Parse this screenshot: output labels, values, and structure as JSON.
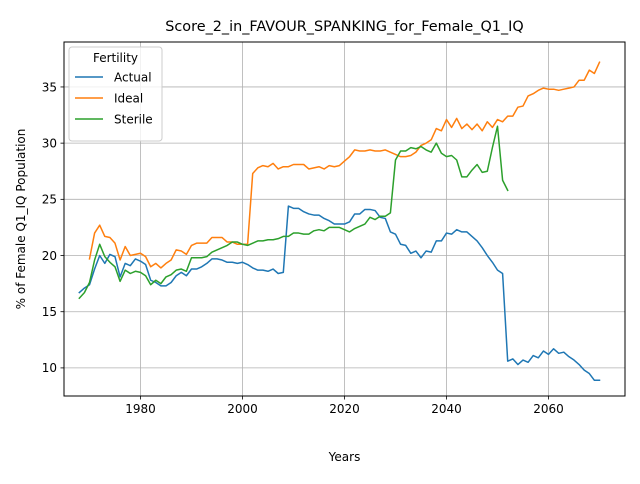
{
  "chart_data": {
    "type": "line",
    "title": "Score_2_in_FAVOUR_SPANKING_for_Female_Q1_IQ",
    "xlabel": "Years",
    "ylabel": "% of Female Q1_IQ Population",
    "xlim": [
      1965.0,
      2075.0
    ],
    "ylim": [
      7.5,
      39.0
    ],
    "xticks": [
      1980,
      2000,
      2020,
      2040,
      2060
    ],
    "yticks": [
      10,
      15,
      20,
      25,
      30,
      35
    ],
    "grid": true,
    "legend": {
      "title": "Fertility",
      "placement": "upper left"
    },
    "series": [
      {
        "name": "Actual",
        "color": "#1f77b4",
        "x": [
          1968,
          1969,
          1970,
          1971,
          1972,
          1973,
          1974,
          1975,
          1976,
          1977,
          1978,
          1979,
          1980,
          1981,
          1982,
          1983,
          1984,
          1985,
          1986,
          1987,
          1988,
          1989,
          1990,
          1991,
          1992,
          1993,
          1994,
          1995,
          1996,
          1997,
          1998,
          1999,
          2000,
          2001,
          2002,
          2003,
          2004,
          2005,
          2006,
          2007,
          2008,
          2009,
          2010,
          2011,
          2012,
          2013,
          2014,
          2015,
          2016,
          2017,
          2018,
          2019,
          2020,
          2021,
          2022,
          2023,
          2024,
          2025,
          2026,
          2027,
          2028,
          2029,
          2030,
          2031,
          2032,
          2033,
          2034,
          2035,
          2036,
          2037,
          2038,
          2039,
          2040,
          2041,
          2042,
          2043,
          2044,
          2045,
          2046,
          2047,
          2048,
          2049,
          2050,
          2051,
          2052,
          2053,
          2054,
          2055,
          2056,
          2057,
          2058,
          2059,
          2060,
          2061,
          2062,
          2063,
          2064,
          2065,
          2066,
          2067,
          2068,
          2069,
          2070
        ],
        "y": [
          16.7,
          17.1,
          17.4,
          18.8,
          20.0,
          19.3,
          20.1,
          19.9,
          18.1,
          19.3,
          19.1,
          19.7,
          19.5,
          19.2,
          17.8,
          17.6,
          17.3,
          17.3,
          17.6,
          18.2,
          18.5,
          18.2,
          18.8,
          18.8,
          19.0,
          19.3,
          19.7,
          19.7,
          19.6,
          19.4,
          19.4,
          19.3,
          19.4,
          19.2,
          18.9,
          18.7,
          18.7,
          18.6,
          18.8,
          18.4,
          18.5,
          24.4,
          24.2,
          24.2,
          23.9,
          23.7,
          23.6,
          23.6,
          23.3,
          23.1,
          22.8,
          22.8,
          22.8,
          23.0,
          23.7,
          23.7,
          24.1,
          24.1,
          24.0,
          23.4,
          23.3,
          22.1,
          21.9,
          21.0,
          20.9,
          20.2,
          20.4,
          19.8,
          20.4,
          20.3,
          21.3,
          21.3,
          22.0,
          21.9,
          22.3,
          22.1,
          22.1,
          21.7,
          21.3,
          20.7,
          20.0,
          19.4,
          18.7,
          18.4,
          10.6,
          10.8,
          10.3,
          10.7,
          10.5,
          11.1,
          10.9,
          11.5,
          11.2,
          11.7,
          11.3,
          11.4,
          11.0,
          10.7,
          10.3,
          9.8,
          9.5,
          8.9,
          8.9
        ]
      },
      {
        "name": "Ideal",
        "color": "#ff7f0e",
        "x": [
          1970,
          1971,
          1972,
          1973,
          1974,
          1975,
          1976,
          1977,
          1978,
          1979,
          1980,
          1981,
          1982,
          1983,
          1984,
          1985,
          1986,
          1987,
          1988,
          1989,
          1990,
          1991,
          1992,
          1993,
          1994,
          1995,
          1996,
          1997,
          1998,
          1999,
          2000,
          2001,
          2002,
          2003,
          2004,
          2005,
          2006,
          2007,
          2008,
          2009,
          2010,
          2011,
          2012,
          2013,
          2014,
          2015,
          2016,
          2017,
          2018,
          2019,
          2020,
          2021,
          2022,
          2023,
          2024,
          2025,
          2026,
          2027,
          2028,
          2029,
          2030,
          2031,
          2032,
          2033,
          2034,
          2035,
          2036,
          2037,
          2038,
          2039,
          2040,
          2041,
          2042,
          2043,
          2044,
          2045,
          2046,
          2047,
          2048,
          2049,
          2050,
          2051,
          2052,
          2053,
          2054,
          2055,
          2056,
          2057,
          2058,
          2059,
          2060,
          2061,
          2062,
          2063,
          2064,
          2065,
          2066,
          2067,
          2068,
          2069,
          2070
        ],
        "y": [
          19.7,
          22.0,
          22.7,
          21.7,
          21.6,
          21.1,
          19.6,
          20.8,
          20.0,
          20.1,
          20.2,
          19.9,
          19.0,
          19.3,
          18.9,
          19.3,
          19.6,
          20.5,
          20.4,
          20.1,
          20.9,
          21.1,
          21.1,
          21.1,
          21.6,
          21.6,
          21.6,
          21.2,
          21.2,
          21.0,
          21.0,
          21.0,
          27.3,
          27.8,
          28.0,
          27.9,
          28.2,
          27.7,
          27.9,
          27.9,
          28.1,
          28.1,
          28.1,
          27.7,
          27.8,
          27.9,
          27.7,
          28.0,
          27.9,
          28.0,
          28.4,
          28.8,
          29.4,
          29.3,
          29.3,
          29.4,
          29.3,
          29.3,
          29.4,
          29.2,
          29.0,
          28.8,
          28.8,
          28.9,
          29.2,
          29.8,
          30.0,
          30.3,
          31.3,
          31.1,
          32.1,
          31.4,
          32.2,
          31.3,
          31.7,
          31.2,
          31.7,
          31.1,
          31.9,
          31.4,
          32.1,
          31.9,
          32.4,
          32.4,
          33.2,
          33.3,
          34.2,
          34.4,
          34.7,
          34.9,
          34.8,
          34.8,
          34.7,
          34.8,
          34.9,
          35.0,
          35.6,
          35.6,
          36.5,
          36.2,
          37.2
        ]
      },
      {
        "name": "Sterile",
        "color": "#2ca02c",
        "x": [
          1968,
          1969,
          1970,
          1971,
          1972,
          1973,
          1974,
          1975,
          1976,
          1977,
          1978,
          1979,
          1980,
          1981,
          1982,
          1983,
          1984,
          1985,
          1986,
          1987,
          1988,
          1989,
          1990,
          1991,
          1992,
          1993,
          1994,
          1995,
          1996,
          1997,
          1998,
          1999,
          2000,
          2001,
          2002,
          2003,
          2004,
          2005,
          2006,
          2007,
          2008,
          2009,
          2010,
          2011,
          2012,
          2013,
          2014,
          2015,
          2016,
          2017,
          2018,
          2019,
          2020,
          2021,
          2022,
          2023,
          2024,
          2025,
          2026,
          2027,
          2028,
          2029,
          2030,
          2031,
          2032,
          2033,
          2034,
          2035,
          2036,
          2037,
          2038,
          2039,
          2040,
          2041,
          2042,
          2043,
          2044,
          2045,
          2046,
          2047,
          2048,
          2049,
          2050,
          2051,
          2052
        ],
        "y": [
          16.2,
          16.7,
          17.6,
          19.6,
          21.0,
          19.9,
          19.4,
          19.0,
          17.7,
          18.7,
          18.4,
          18.6,
          18.5,
          18.2,
          17.4,
          17.8,
          17.5,
          18.1,
          18.3,
          18.7,
          18.8,
          18.6,
          19.8,
          19.8,
          19.8,
          19.9,
          20.3,
          20.5,
          20.7,
          20.9,
          21.2,
          21.2,
          21.0,
          20.9,
          21.1,
          21.3,
          21.3,
          21.4,
          21.4,
          21.5,
          21.7,
          21.7,
          22.0,
          22.0,
          21.9,
          21.9,
          22.2,
          22.3,
          22.2,
          22.5,
          22.5,
          22.5,
          22.3,
          22.1,
          22.4,
          22.6,
          22.8,
          23.4,
          23.2,
          23.5,
          23.5,
          23.8,
          28.5,
          29.3,
          29.3,
          29.6,
          29.5,
          29.7,
          29.4,
          29.2,
          30.0,
          29.1,
          28.8,
          28.9,
          28.5,
          27.0,
          27.0,
          27.6,
          28.1,
          27.4,
          27.5,
          29.6,
          31.5,
          26.7,
          25.8
        ]
      }
    ]
  }
}
